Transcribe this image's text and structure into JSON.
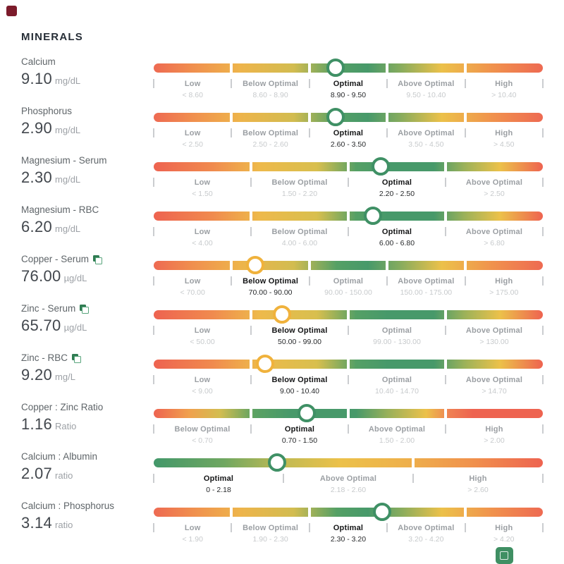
{
  "section": {
    "title": "MINERALS"
  },
  "colors": {
    "top_badge": "#7c1b2b",
    "bottom_badge": "#3f8f63",
    "marker_green": "#3f9065",
    "marker_yellow": "#f0b23c",
    "icon_dark_green": "#2f7c52",
    "icon_light_green": "#58a47c",
    "tick": "#cbcdd0"
  },
  "gradients": {
    "mid5": [
      [
        0,
        "#ee6a52"
      ],
      [
        10,
        "#f08f4e"
      ],
      [
        22,
        "#eeb44b"
      ],
      [
        36,
        "#d2bc50"
      ],
      [
        47,
        "#55a065"
      ],
      [
        55,
        "#47996a"
      ],
      [
        63,
        "#83ab5e"
      ],
      [
        74,
        "#ecc14a"
      ],
      [
        87,
        "#f0924d"
      ],
      [
        100,
        "#ee6a52"
      ]
    ],
    "mid4": [
      [
        0,
        "#ee6350"
      ],
      [
        15,
        "#f08a4e"
      ],
      [
        27,
        "#eeb94b"
      ],
      [
        42,
        "#d8bf4e"
      ],
      [
        52,
        "#55a065"
      ],
      [
        60,
        "#47996a"
      ],
      [
        72,
        "#47996a"
      ],
      [
        80,
        "#9db259"
      ],
      [
        89,
        "#ecc14a"
      ],
      [
        100,
        "#ee6350"
      ]
    ],
    "ratio4": [
      [
        0,
        "#ee6350"
      ],
      [
        9,
        "#f0a04d"
      ],
      [
        17,
        "#d3bd50"
      ],
      [
        26,
        "#5ba263"
      ],
      [
        35,
        "#47996a"
      ],
      [
        52,
        "#47996a"
      ],
      [
        60,
        "#97b05a"
      ],
      [
        70,
        "#ecc14a"
      ],
      [
        76,
        "#ef8052"
      ],
      [
        82,
        "#ee6350"
      ],
      [
        100,
        "#ee6350"
      ]
    ],
    "ratio3": [
      [
        0,
        "#43986a"
      ],
      [
        18,
        "#6fa761"
      ],
      [
        33,
        "#c0ba53"
      ],
      [
        48,
        "#ecc14a"
      ],
      [
        65,
        "#eeb04b"
      ],
      [
        82,
        "#f0914d"
      ],
      [
        100,
        "#ee6350"
      ]
    ]
  },
  "rows": [
    {
      "name": "Calcium",
      "value": "9.10",
      "unit": "mg/dL",
      "has_icon": false,
      "gradient": "mid5",
      "marker_pos": 46.7,
      "marker_color": "marker_green",
      "segments": [
        {
          "label": "Low",
          "range": "< 8.60",
          "active": false
        },
        {
          "label": "Below Optimal",
          "range": "8.60 - 8.90",
          "active": false
        },
        {
          "label": "Optimal",
          "range": "8.90 - 9.50",
          "active": true
        },
        {
          "label": "Above Optimal",
          "range": "9.50 - 10.40",
          "active": false
        },
        {
          "label": "High",
          "range": "> 10.40",
          "active": false
        }
      ]
    },
    {
      "name": "Phosphorus",
      "value": "2.90",
      "unit": "mg/dL",
      "has_icon": false,
      "gradient": "mid5",
      "marker_pos": 46.7,
      "marker_color": "marker_green",
      "segments": [
        {
          "label": "Low",
          "range": "< 2.50",
          "active": false
        },
        {
          "label": "Below Optimal",
          "range": "2.50 - 2.60",
          "active": false
        },
        {
          "label": "Optimal",
          "range": "2.60 - 3.50",
          "active": true
        },
        {
          "label": "Above Optimal",
          "range": "3.50 - 4.50",
          "active": false
        },
        {
          "label": "High",
          "range": "> 4.50",
          "active": false
        }
      ]
    },
    {
      "name": "Magnesium - Serum",
      "value": "2.30",
      "unit": "mg/dL",
      "has_icon": false,
      "gradient": "mid4",
      "marker_pos": 58.3,
      "marker_color": "marker_green",
      "segments": [
        {
          "label": "Low",
          "range": "< 1.50",
          "active": false
        },
        {
          "label": "Below Optimal",
          "range": "1.50 - 2.20",
          "active": false
        },
        {
          "label": "Optimal",
          "range": "2.20 - 2.50",
          "active": true
        },
        {
          "label": "Above Optimal",
          "range": "> 2.50",
          "active": false
        }
      ]
    },
    {
      "name": "Magnesium - RBC",
      "value": "6.20",
      "unit": "mg/dL",
      "has_icon": false,
      "gradient": "mid4",
      "marker_pos": 56.3,
      "marker_color": "marker_green",
      "segments": [
        {
          "label": "Low",
          "range": "< 4.00",
          "active": false
        },
        {
          "label": "Below Optimal",
          "range": "4.00 - 6.00",
          "active": false
        },
        {
          "label": "Optimal",
          "range": "6.00 - 6.80",
          "active": true
        },
        {
          "label": "Above Optimal",
          "range": "> 6.80",
          "active": false
        }
      ]
    },
    {
      "name": "Copper - Serum",
      "value": "76.00",
      "unit": "µg/dL",
      "has_icon": true,
      "gradient": "mid5",
      "marker_pos": 26.0,
      "marker_color": "marker_yellow",
      "segments": [
        {
          "label": "Low",
          "range": "< 70.00",
          "active": false
        },
        {
          "label": "Below Optimal",
          "range": "70.00 - 90.00",
          "active": true
        },
        {
          "label": "Optimal",
          "range": "90.00 - 150.00",
          "active": false
        },
        {
          "label": "Above Optimal",
          "range": "150.00 - 175.00",
          "active": false
        },
        {
          "label": "High",
          "range": "> 175.00",
          "active": false
        }
      ]
    },
    {
      "name": "Zinc - Serum",
      "value": "65.70",
      "unit": "µg/dL",
      "has_icon": true,
      "gradient": "mid4",
      "marker_pos": 33.0,
      "marker_color": "marker_yellow",
      "segments": [
        {
          "label": "Low",
          "range": "< 50.00",
          "active": false
        },
        {
          "label": "Below Optimal",
          "range": "50.00 - 99.00",
          "active": true
        },
        {
          "label": "Optimal",
          "range": "99.00 - 130.00",
          "active": false
        },
        {
          "label": "Above Optimal",
          "range": "> 130.00",
          "active": false
        }
      ]
    },
    {
      "name": "Zinc - RBC",
      "value": "9.20",
      "unit": "mg/L",
      "has_icon": true,
      "gradient": "mid4",
      "marker_pos": 28.6,
      "marker_color": "marker_yellow",
      "segments": [
        {
          "label": "Low",
          "range": "< 9.00",
          "active": false
        },
        {
          "label": "Below Optimal",
          "range": "9.00 - 10.40",
          "active": true
        },
        {
          "label": "Optimal",
          "range": "10.40 - 14.70",
          "active": false
        },
        {
          "label": "Above Optimal",
          "range": "> 14.70",
          "active": false
        }
      ]
    },
    {
      "name": "Copper : Zinc Ratio",
      "value": "1.16",
      "unit": "Ratio",
      "has_icon": false,
      "gradient": "ratio4",
      "marker_pos": 39.4,
      "marker_color": "marker_green",
      "segments": [
        {
          "label": "Below Optimal",
          "range": "< 0.70",
          "active": false
        },
        {
          "label": "Optimal",
          "range": "0.70 - 1.50",
          "active": true
        },
        {
          "label": "Above Optimal",
          "range": "1.50 - 2.00",
          "active": false
        },
        {
          "label": "High",
          "range": "> 2.00",
          "active": false
        }
      ]
    },
    {
      "name": "Calcium : Albumin",
      "value": "2.07",
      "unit": "ratio",
      "has_icon": false,
      "gradient": "ratio3",
      "marker_pos": 31.7,
      "marker_color": "marker_green",
      "segments": [
        {
          "label": "Optimal",
          "range": "0 - 2.18",
          "active": true
        },
        {
          "label": "Above Optimal",
          "range": "2.18 - 2.60",
          "active": false
        },
        {
          "label": "High",
          "range": "> 2.60",
          "active": false
        }
      ]
    },
    {
      "name": "Calcium : Phosphorus",
      "value": "3.14",
      "unit": "ratio",
      "has_icon": false,
      "gradient": "mid5",
      "marker_pos": 58.7,
      "marker_color": "marker_green",
      "segments": [
        {
          "label": "Low",
          "range": "< 1.90",
          "active": false
        },
        {
          "label": "Below Optimal",
          "range": "1.90 - 2.30",
          "active": false
        },
        {
          "label": "Optimal",
          "range": "2.30 - 3.20",
          "active": true
        },
        {
          "label": "Above Optimal",
          "range": "3.20 - 4.20",
          "active": false
        },
        {
          "label": "High",
          "range": "> 4.20",
          "active": false
        }
      ]
    }
  ]
}
